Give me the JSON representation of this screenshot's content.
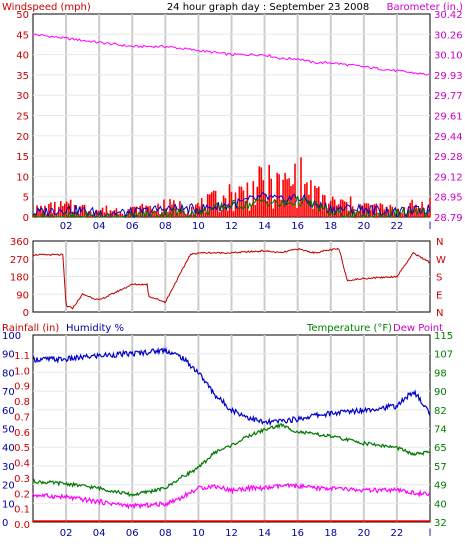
{
  "colors": {
    "background": "#ffffff",
    "frame": "#000000",
    "grid": "#cccccc",
    "red": "#ff0000",
    "dark_red": "#c00000",
    "magenta": "#ff00ff",
    "blue": "#0000cc",
    "green": "#007700",
    "label_blue": "#0000a0",
    "label_green": "#008000"
  },
  "chart_data": [
    {
      "type": "line",
      "title": "24 hour graph day : September 23 2008",
      "left_label": "Windspeed (mph)",
      "right_label": "Barometer (in.)",
      "x_tick_labels": [
        "02",
        "04",
        "06",
        "08",
        "10",
        "12",
        "14",
        "16",
        "18",
        "20",
        "22",
        "l"
      ],
      "left_ticks": [
        "0",
        "5",
        "10",
        "15",
        "20",
        "25",
        "30",
        "35",
        "40",
        "45",
        "50"
      ],
      "ylim_left": [
        0,
        50
      ],
      "right_ticks": [
        "28.79",
        "28.95",
        "29.12",
        "29.28",
        "29.44",
        "29.61",
        "29.77",
        "29.93",
        "30.10",
        "30.26",
        "30.42"
      ],
      "ylim_right": [
        28.79,
        30.42
      ],
      "grid": true,
      "x_hours": [
        0,
        2,
        4,
        6,
        8,
        10,
        12,
        13,
        14,
        15,
        16,
        17,
        18,
        20,
        22,
        24
      ],
      "series": [
        {
          "values": [
            45,
            44,
            43,
            42,
            42,
            41,
            40,
            40,
            40,
            39,
            39,
            38,
            38,
            37,
            36,
            35
          ],
          "axis": "right_scale_in_left_units",
          "color_key": "magenta"
        },
        {
          "values": [
            2,
            3,
            2,
            2,
            3,
            3,
            6,
            7,
            9,
            8,
            11,
            6,
            4,
            3,
            2,
            4
          ],
          "color_key": "red",
          "style": "bars"
        },
        {
          "values": [
            1,
            2,
            1,
            1,
            2,
            2,
            3,
            4,
            5,
            4,
            5,
            3,
            2,
            2,
            1,
            2
          ],
          "color_key": "blue"
        },
        {
          "values": [
            0,
            0,
            0,
            0,
            1,
            1,
            3,
            3,
            4,
            3,
            4,
            3,
            1,
            0,
            1,
            1
          ],
          "color_key": "green"
        }
      ]
    },
    {
      "type": "line",
      "left_ticks": [
        "0",
        "90",
        "180",
        "270",
        "360"
      ],
      "ylim": [
        0,
        360
      ],
      "right_ticks": [
        "N",
        "E",
        "S",
        "W",
        "N"
      ],
      "grid": true,
      "x_hours": [
        0,
        1.8,
        2,
        2.4,
        3,
        4,
        6,
        6.9,
        7,
        8,
        9.5,
        10,
        12,
        14,
        15,
        16,
        17,
        18,
        18.5,
        19,
        20,
        22,
        23,
        24
      ],
      "series": [
        {
          "values": [
            290,
            290,
            30,
            20,
            90,
            60,
            140,
            140,
            80,
            50,
            290,
            300,
            300,
            310,
            300,
            320,
            300,
            315,
            320,
            160,
            170,
            180,
            300,
            250
          ],
          "color_key": "dark_red"
        }
      ]
    },
    {
      "type": "line",
      "left_label": "Rainfall (in)",
      "middle_label": "Humidity %",
      "right_label": "Temperature (°F)",
      "right_label_2": "Dew Point",
      "humidity_ticks": [
        "100",
        "90",
        "80",
        "70",
        "60",
        "50",
        "40",
        "30",
        "20",
        "10",
        "0"
      ],
      "rain_ticks": [
        "1.1",
        "1.0",
        "0.9",
        "0.8",
        "0.7",
        "0.6",
        "0.5",
        "0.4",
        "0.3",
        "0.2",
        "0.1",
        "0.0"
      ],
      "temp_ticks": [
        "115",
        "107",
        "98",
        "90",
        "82",
        "74",
        "65",
        "57",
        "49",
        "40",
        "32"
      ],
      "ylim_humidity": [
        0,
        100
      ],
      "ylim_temperature": [
        32,
        115
      ],
      "x_tick_labels": [
        "02",
        "04",
        "06",
        "08",
        "10",
        "12",
        "14",
        "16",
        "18",
        "20",
        "22",
        "l"
      ],
      "grid": true,
      "x_hours": [
        0,
        2,
        4,
        6,
        8,
        9,
        10,
        11,
        12,
        13,
        14,
        15,
        16,
        17,
        18,
        20,
        22,
        23,
        24
      ],
      "series": [
        {
          "name": "Humidity %",
          "values": [
            87,
            87,
            89,
            90,
            92,
            88,
            80,
            68,
            60,
            56,
            53,
            54,
            55,
            57,
            58,
            60,
            62,
            70,
            58
          ],
          "color_key": "blue"
        },
        {
          "name": "Temperature (°F)",
          "values": [
            50,
            49,
            47,
            44,
            47,
            52,
            56,
            63,
            66,
            70,
            73,
            75,
            72,
            71,
            70,
            67,
            65,
            62,
            63
          ],
          "color_key": "green"
        },
        {
          "name": "Dew Point",
          "values": [
            44,
            43,
            41,
            39,
            40,
            43,
            47,
            48,
            46,
            47,
            47,
            48,
            48,
            47,
            47,
            46,
            46,
            45,
            44
          ],
          "color_key": "magenta"
        },
        {
          "name": "Rainfall (in)",
          "values": [
            0,
            0,
            0,
            0,
            0,
            0,
            0,
            0,
            0,
            0,
            0,
            0,
            0,
            0,
            0,
            0,
            0,
            0,
            0
          ],
          "color_key": "red"
        }
      ]
    }
  ]
}
